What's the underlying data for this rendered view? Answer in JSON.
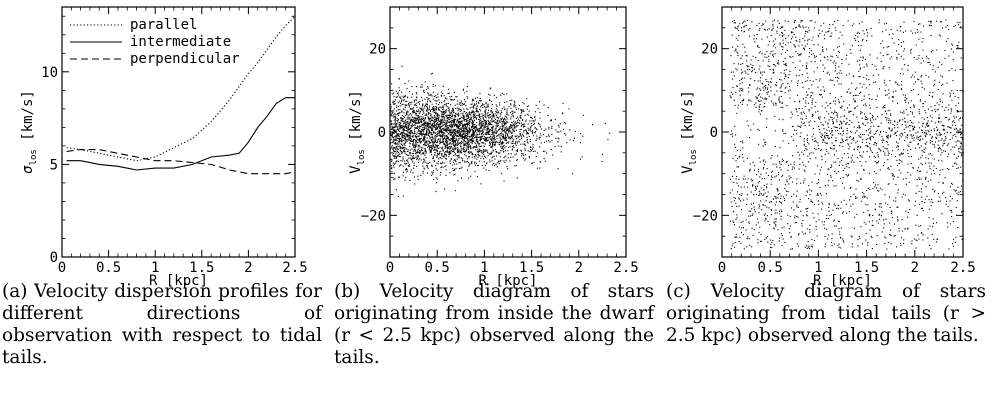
{
  "captions": [
    {
      "label": "(a)",
      "text": "Velocity dispersion profiles for different directions of observation with respect to tidal tails."
    },
    {
      "label": "(b)",
      "text": "Velocity diagram of stars originating from inside the dwarf (r < 2.5 kpc) observed along the tails."
    },
    {
      "label": "(c)",
      "text": "Velocity diagram of stars originating from tidal tails (r > 2.5 kpc) observed along the tails."
    }
  ],
  "chart_data": [
    {
      "type": "line",
      "xlabel": "R [kpc]",
      "ylabel": "σlos [km/s]",
      "xlim": [
        0,
        2.5
      ],
      "ylim": [
        0,
        13.5
      ],
      "xticks": [
        "0",
        "0.5",
        "1",
        "1.5",
        "2",
        "2.5"
      ],
      "yticks": [
        "0",
        "5",
        "10"
      ],
      "legend_position": "top-right",
      "series": [
        {
          "name": "parallel",
          "style": "dotted",
          "x": [
            0.05,
            0.2,
            0.4,
            0.6,
            0.8,
            1.0,
            1.2,
            1.4,
            1.6,
            1.8,
            2.0,
            2.1,
            2.2,
            2.3,
            2.4,
            2.5
          ],
          "y": [
            5.9,
            5.8,
            5.6,
            5.4,
            5.2,
            5.4,
            5.9,
            6.4,
            7.3,
            8.5,
            9.9,
            10.5,
            11.2,
            11.9,
            12.5,
            13.0
          ]
        },
        {
          "name": "intermediate",
          "style": "solid",
          "x": [
            0.05,
            0.2,
            0.4,
            0.6,
            0.8,
            1.0,
            1.2,
            1.4,
            1.6,
            1.8,
            1.9,
            2.0,
            2.1,
            2.2,
            2.3,
            2.4,
            2.5
          ],
          "y": [
            5.2,
            5.2,
            5.0,
            4.9,
            4.7,
            4.8,
            4.8,
            5.0,
            5.4,
            5.5,
            5.6,
            6.2,
            7.0,
            7.6,
            8.3,
            8.6,
            8.6
          ]
        },
        {
          "name": "perpendicular",
          "style": "dashed",
          "x": [
            0.05,
            0.2,
            0.4,
            0.6,
            0.8,
            1.0,
            1.2,
            1.4,
            1.6,
            1.8,
            2.0,
            2.2,
            2.4,
            2.5
          ],
          "y": [
            5.7,
            5.8,
            5.8,
            5.6,
            5.4,
            5.2,
            5.2,
            5.1,
            5.0,
            4.7,
            4.5,
            4.5,
            4.5,
            4.6
          ]
        }
      ]
    },
    {
      "type": "scatter",
      "xlabel": "R [kpc]",
      "ylabel": "Vlos [km/s]",
      "xlim": [
        0,
        2.5
      ],
      "ylim": [
        -30,
        30
      ],
      "xticks": [
        "0",
        "0.5",
        "1",
        "1.5",
        "2",
        "2.5"
      ],
      "yticks": [
        "−20",
        "0",
        "20"
      ],
      "point_count": 3500,
      "distribution": "dense core near R 0.3–1 kpc, |V| up to about 12 km/s, thinning toward R 2.3 kpc"
    },
    {
      "type": "scatter",
      "xlabel": "R [kpc]",
      "ylabel": "Vlos [km/s]",
      "xlim": [
        0,
        2.5
      ],
      "ylim": [
        -30,
        30
      ],
      "xticks": [
        "0",
        "0.5",
        "1",
        "1.5",
        "2",
        "2.5"
      ],
      "yticks": [
        "−20",
        "0",
        "20"
      ],
      "point_count": 2600,
      "distribution": "broad scatter filling the panel, denser band near V=0 toward larger R"
    }
  ]
}
